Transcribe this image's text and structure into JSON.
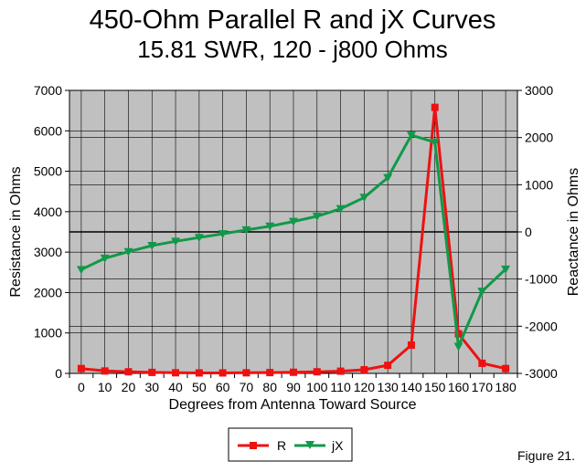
{
  "chart_data": {
    "type": "line",
    "title": "450-Ohm Parallel R and jX Curves",
    "subtitle": "15.81 SWR, 120 - j800 Ohms",
    "xlabel": "Degrees from Antenna Toward Source",
    "ylabel_left": "Resistance in Ohms",
    "ylabel_right": "Reactance in Ohms",
    "categories": [
      "0",
      "10",
      "20",
      "30",
      "40",
      "50",
      "60",
      "70",
      "80",
      "90",
      "100",
      "110",
      "120",
      "130",
      "140",
      "150",
      "160",
      "170",
      "180"
    ],
    "ylim_left": [
      0,
      7000
    ],
    "yticks_left": [
      "0",
      "1000",
      "2000",
      "3000",
      "4000",
      "5000",
      "6000",
      "7000"
    ],
    "ylim_right": [
      -3000,
      3000
    ],
    "yticks_right": [
      "-3000",
      "-2000",
      "-1000",
      "0",
      "1000",
      "2000",
      "3000"
    ],
    "grid": true,
    "legend_position": "bottom-center",
    "series": [
      {
        "name": "R",
        "axis": "left",
        "color": "#ee1111",
        "marker": "square",
        "values": [
          120,
          60,
          40,
          25,
          15,
          12,
          12,
          15,
          20,
          28,
          40,
          55,
          90,
          200,
          700,
          6580,
          980,
          250,
          120
        ]
      },
      {
        "name": "jX",
        "axis": "right",
        "color": "#11994a",
        "marker": "triangle-down",
        "values": [
          -800,
          -560,
          -420,
          -290,
          -200,
          -120,
          -40,
          40,
          120,
          220,
          330,
          490,
          730,
          1150,
          2050,
          1900,
          -2430,
          -1260,
          -790
        ]
      }
    ],
    "caption": "Figure 21."
  }
}
